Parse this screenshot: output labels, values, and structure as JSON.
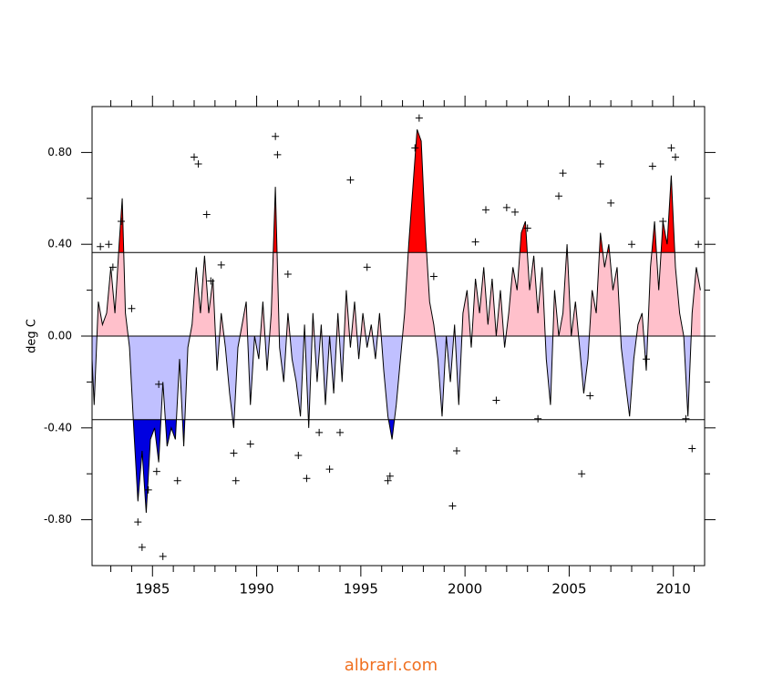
{
  "chart_data": {
    "type": "area",
    "ylabel": "deg C",
    "footer": "albrari.com",
    "xlim": [
      1982.1,
      2011.5
    ],
    "ylim": [
      -1,
      1
    ],
    "xticks": [
      1985,
      1990,
      1995,
      2000,
      2005,
      2010
    ],
    "xminorticks": [
      1983,
      1984,
      1986,
      1987,
      1988,
      1989,
      1991,
      1992,
      1993,
      1994,
      1996,
      1997,
      1998,
      1999,
      2001,
      2002,
      2003,
      2004,
      2006,
      2007,
      2008,
      2009,
      2011
    ],
    "yticks": [
      {
        "value": -0.8,
        "label": "-0.80"
      },
      {
        "value": -0.4,
        "label": "-0.40"
      },
      {
        "value": 0,
        "label": "0.00"
      },
      {
        "value": 0.4,
        "label": "0.40"
      },
      {
        "value": 0.8,
        "label": "0.80"
      }
    ],
    "yminorticks": [
      -0.6,
      -0.2,
      0.2,
      0.6
    ],
    "thresholds": [
      0.364,
      -0.364
    ],
    "fill_colors": {
      "high": "#ff0000",
      "positive": "#ffc0cb",
      "negative": "#c0c0ff",
      "low": "#0000e0"
    },
    "series": [
      {
        "color": "#000000",
        "x": [
          1982.1,
          1982.2,
          1982.4,
          1982.6,
          1982.8,
          1983.0,
          1983.2,
          1983.4,
          1983.55,
          1983.7,
          1983.9,
          1984.1,
          1984.3,
          1984.5,
          1984.7,
          1984.9,
          1985.1,
          1985.3,
          1985.5,
          1985.7,
          1985.9,
          1986.1,
          1986.3,
          1986.5,
          1986.7,
          1986.9,
          1987.1,
          1987.3,
          1987.5,
          1987.7,
          1987.9,
          1988.1,
          1988.3,
          1988.5,
          1988.7,
          1988.9,
          1989.1,
          1989.3,
          1989.5,
          1989.7,
          1989.9,
          1990.1,
          1990.3,
          1990.5,
          1990.7,
          1990.9,
          1991.1,
          1991.3,
          1991.5,
          1991.7,
          1991.9,
          1992.1,
          1992.3,
          1992.5,
          1992.7,
          1992.9,
          1993.1,
          1993.3,
          1993.5,
          1993.7,
          1993.9,
          1994.1,
          1994.3,
          1994.5,
          1994.7,
          1994.9,
          1995.1,
          1995.3,
          1995.5,
          1995.7,
          1995.9,
          1996.1,
          1996.3,
          1996.5,
          1996.7,
          1996.9,
          1997.1,
          1997.3,
          1997.5,
          1997.7,
          1997.9,
          1998.1,
          1998.3,
          1998.5,
          1998.7,
          1998.9,
          1999.1,
          1999.3,
          1999.5,
          1999.7,
          1999.9,
          2000.1,
          2000.3,
          2000.5,
          2000.7,
          2000.9,
          2001.1,
          2001.3,
          2001.5,
          2001.7,
          2001.9,
          2002.1,
          2002.3,
          2002.5,
          2002.7,
          2002.9,
          2003.1,
          2003.3,
          2003.5,
          2003.7,
          2003.9,
          2004.1,
          2004.3,
          2004.5,
          2004.7,
          2004.9,
          2005.1,
          2005.3,
          2005.5,
          2005.7,
          2005.9,
          2006.1,
          2006.3,
          2006.5,
          2006.7,
          2006.9,
          2007.1,
          2007.3,
          2007.5,
          2007.7,
          2007.9,
          2008.1,
          2008.3,
          2008.5,
          2008.7,
          2008.9,
          2009.1,
          2009.3,
          2009.5,
          2009.7,
          2009.9,
          2010.1,
          2010.3,
          2010.5,
          2010.7,
          2010.9,
          2011.1,
          2011.3
        ],
        "values": [
          -0.1,
          -0.3,
          0.15,
          0.05,
          0.1,
          0.3,
          0.1,
          0.4,
          0.6,
          0.1,
          -0.05,
          -0.4,
          -0.72,
          -0.5,
          -0.77,
          -0.45,
          -0.4,
          -0.55,
          -0.2,
          -0.48,
          -0.4,
          -0.45,
          -0.1,
          -0.48,
          -0.05,
          0.05,
          0.3,
          0.1,
          0.35,
          0.1,
          0.25,
          -0.15,
          0.1,
          -0.05,
          -0.25,
          -0.4,
          -0.05,
          0.05,
          0.15,
          -0.3,
          0.0,
          -0.1,
          0.15,
          -0.15,
          0.1,
          0.65,
          -0.05,
          -0.2,
          0.1,
          -0.1,
          -0.2,
          -0.35,
          0.05,
          -0.4,
          0.1,
          -0.2,
          0.05,
          -0.3,
          0.0,
          -0.25,
          0.1,
          -0.2,
          0.2,
          -0.05,
          0.15,
          -0.1,
          0.1,
          -0.05,
          0.05,
          -0.1,
          0.1,
          -0.15,
          -0.35,
          -0.45,
          -0.3,
          -0.1,
          0.1,
          0.4,
          0.65,
          0.9,
          0.85,
          0.45,
          0.15,
          0.05,
          -0.1,
          -0.35,
          0.0,
          -0.2,
          0.05,
          -0.3,
          0.1,
          0.2,
          -0.05,
          0.25,
          0.1,
          0.3,
          0.05,
          0.25,
          0.0,
          0.2,
          -0.05,
          0.1,
          0.3,
          0.2,
          0.45,
          0.5,
          0.2,
          0.35,
          0.1,
          0.3,
          -0.1,
          -0.3,
          0.2,
          0.0,
          0.1,
          0.4,
          0.0,
          0.15,
          -0.05,
          -0.25,
          -0.1,
          0.2,
          0.1,
          0.45,
          0.3,
          0.4,
          0.2,
          0.3,
          -0.05,
          -0.2,
          -0.35,
          -0.1,
          0.05,
          0.1,
          -0.15,
          0.3,
          0.5,
          0.2,
          0.5,
          0.4,
          0.7,
          0.3,
          0.1,
          0.0,
          -0.35,
          0.1,
          0.3,
          0.2
        ]
      }
    ],
    "points": {
      "x": [
        1982.5,
        1982.9,
        1983.1,
        1983.5,
        1984.0,
        1984.3,
        1984.5,
        1984.8,
        1985.2,
        1985.3,
        1985.5,
        1986.2,
        1987.0,
        1987.2,
        1987.6,
        1987.8,
        1988.3,
        1988.9,
        1989.0,
        1989.7,
        1990.9,
        1991.0,
        1991.5,
        1992.0,
        1992.4,
        1993.0,
        1993.5,
        1994.0,
        1994.5,
        1995.3,
        1996.3,
        1996.4,
        1997.6,
        1997.8,
        1998.5,
        1999.4,
        1999.6,
        2000.5,
        2001.0,
        2001.5,
        2002.0,
        2002.4,
        2003.0,
        2003.5,
        2004.5,
        2004.7,
        2005.6,
        2006.0,
        2006.5,
        2007.0,
        2008.0,
        2008.7,
        2009.0,
        2009.5,
        2009.9,
        2010.1,
        2010.6,
        2010.9,
        2011.2
      ],
      "values": [
        0.39,
        0.4,
        0.3,
        0.5,
        0.12,
        -0.81,
        -0.92,
        -0.67,
        -0.59,
        -0.21,
        -0.96,
        -0.63,
        0.78,
        0.75,
        0.53,
        0.24,
        0.31,
        -0.51,
        -0.63,
        -0.47,
        0.87,
        0.79,
        0.27,
        -0.52,
        -0.62,
        -0.42,
        -0.58,
        -0.42,
        0.68,
        0.3,
        -0.63,
        -0.61,
        0.82,
        0.95,
        0.26,
        -0.74,
        -0.5,
        0.41,
        0.55,
        -0.28,
        0.56,
        0.54,
        0.47,
        -0.36,
        0.61,
        0.71,
        -0.6,
        -0.26,
        0.75,
        0.58,
        0.4,
        -0.1,
        0.74,
        0.5,
        0.82,
        0.78,
        -0.36,
        -0.49,
        0.4
      ]
    }
  }
}
